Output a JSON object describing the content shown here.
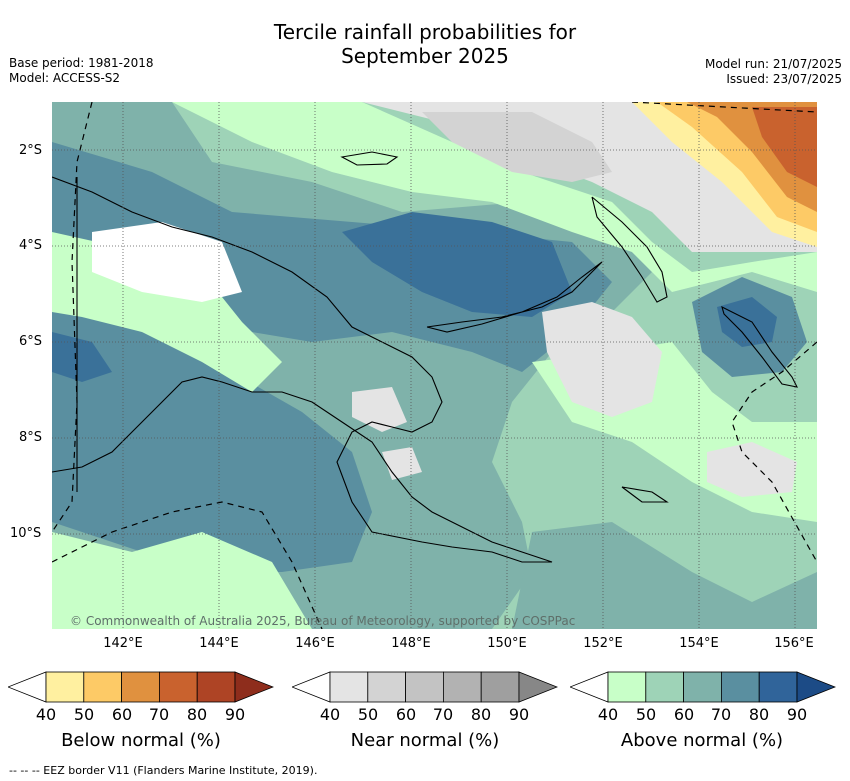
{
  "header": {
    "title_line1": "Tercile rainfall probabilities for",
    "title_line2": "September 2025",
    "base_period": "Base period: 1981-2018",
    "model": "Model: ACCESS-S2",
    "model_run": "Model run: 21/07/2025",
    "issued": "Issued: 23/07/2025"
  },
  "map": {
    "latitude_labels": [
      "2°S",
      "4°S",
      "6°S",
      "8°S",
      "10°S"
    ],
    "longitude_labels": [
      "142°E",
      "144°E",
      "146°E",
      "148°E",
      "150°E",
      "152°E",
      "154°E",
      "156°E"
    ],
    "copyright": "© Commonwealth of Australia 2025, Bureau of Meteorology, supported by COSPPac"
  },
  "colorbars": [
    {
      "title": "Below normal (%)",
      "ticks": [
        "40",
        "50",
        "60",
        "70",
        "80",
        "90"
      ],
      "colors": [
        "#ffffff",
        "#fff0a0",
        "#fdca66",
        "#e0913f",
        "#c9622e",
        "#ae4425",
        "#8e2d1c"
      ]
    },
    {
      "title": "Near normal (%)",
      "ticks": [
        "40",
        "50",
        "60",
        "70",
        "80",
        "90"
      ],
      "colors": [
        "#ffffff",
        "#e4e4e4",
        "#d3d3d3",
        "#c3c3c3",
        "#b2b2b2",
        "#9f9f9f",
        "#878787"
      ]
    },
    {
      "title": "Above normal (%)",
      "ticks": [
        "40",
        "50",
        "60",
        "70",
        "80",
        "90"
      ],
      "colors": [
        "#ffffff",
        "#c8ffc8",
        "#9ed3b7",
        "#7fb2aa",
        "#5a8fa0",
        "#30649a",
        "#1c4b86"
      ]
    }
  ],
  "footer": {
    "eez_note": "--  --  -- EEZ border V11 (Flanders Marine Institute, 2019)."
  }
}
